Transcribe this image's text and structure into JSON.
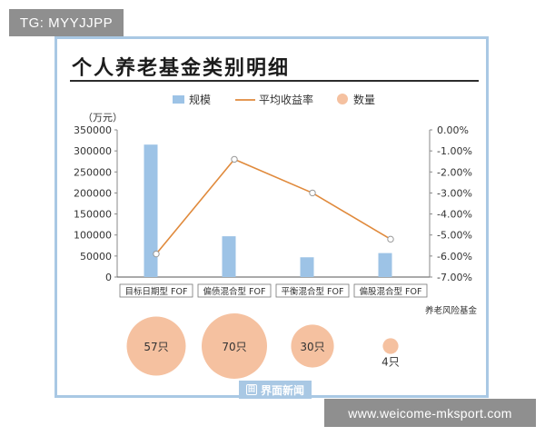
{
  "overlay": {
    "top_left_tag": "TG: MYYJJPP",
    "bottom_right_url": "www.weicome-mksport.com"
  },
  "card": {
    "title": "个人养老基金类别明细",
    "footer_logo": "界面新闻"
  },
  "chart_data": {
    "type": "bar+line",
    "categories": [
      "目标日期型 FOF",
      "偏债混合型 FOF",
      "平衡混合型 FOF",
      "偏股混合型 FOF"
    ],
    "series": [
      {
        "name": "规模",
        "type": "bar",
        "axis": "left",
        "values": [
          315000,
          97000,
          47000,
          57000
        ],
        "color": "#9dc3e6"
      },
      {
        "name": "平均收益率",
        "type": "line",
        "axis": "right",
        "values": [
          -5.9,
          -1.4,
          -3.0,
          -5.2
        ],
        "color": "#e08a3c"
      },
      {
        "name": "数量",
        "type": "bubble",
        "values": [
          57,
          70,
          30,
          4
        ],
        "labels": [
          "57只",
          "70只",
          "30只",
          "4只"
        ],
        "color": "#f5c1a0"
      }
    ],
    "left_unit": "（万元）",
    "left_ticks": [
      "0",
      "50000",
      "100000",
      "150000",
      "200000",
      "250000",
      "300000",
      "350000"
    ],
    "left_range": [
      0,
      350000
    ],
    "right_ticks": [
      "0.00%",
      "-1.00%",
      "-2.00%",
      "-3.00%",
      "-4.00%",
      "-5.00%",
      "-6.00%",
      "-7.00%"
    ],
    "right_range": [
      0,
      -7
    ],
    "legend_position": "top",
    "note": "养老风险基金",
    "grid": false
  }
}
